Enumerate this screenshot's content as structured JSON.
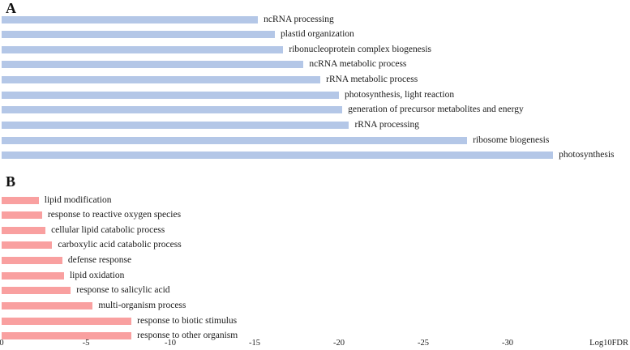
{
  "figure": {
    "axis_label": "Log10FDR",
    "tick_labels": [
      "0",
      "-5",
      "-10",
      "-15",
      "-20",
      "-25",
      "-30"
    ],
    "tick_values": [
      0,
      -5,
      -10,
      -15,
      -20,
      -25,
      -30
    ]
  },
  "chart_data": [
    {
      "type": "bar",
      "orientation": "horizontal",
      "panel": "A",
      "bar_color": "#b4c7e7",
      "xlabel": "Log10FDR",
      "axis_range": [
        0,
        -35
      ],
      "grid": false,
      "legend": false,
      "categories": [
        "ncRNA processing",
        "plastid organization",
        "ribonucleoprotein complex biogenesis",
        "ncRNA metabolic process",
        "rRNA metabolic process",
        "photosynthesis, light reaction",
        "generation of precursor metabolites and energy",
        "rRNA processing",
        "ribosome biogenesis",
        "photosynthesis"
      ],
      "values": [
        -15.2,
        -16.2,
        -16.7,
        -17.9,
        -18.9,
        -20.0,
        -20.2,
        -20.6,
        -27.6,
        -32.7
      ]
    },
    {
      "type": "bar",
      "orientation": "horizontal",
      "panel": "B",
      "bar_color": "#f9a0a0",
      "xlabel": "Log10FDR",
      "axis_range": [
        0,
        -35
      ],
      "grid": false,
      "legend": false,
      "categories": [
        "lipid modification",
        "response to reactive oxygen species",
        "cellular lipid catabolic process",
        "carboxylic acid catabolic process",
        "defense response",
        "lipid oxidation",
        "response to salicylic acid",
        "multi-organism process",
        "response to biotic stimulus",
        "response to other organism"
      ],
      "values": [
        -2.2,
        -2.4,
        -2.6,
        -3.0,
        -3.6,
        -3.7,
        -4.1,
        -5.4,
        -7.7,
        -7.7
      ]
    }
  ]
}
